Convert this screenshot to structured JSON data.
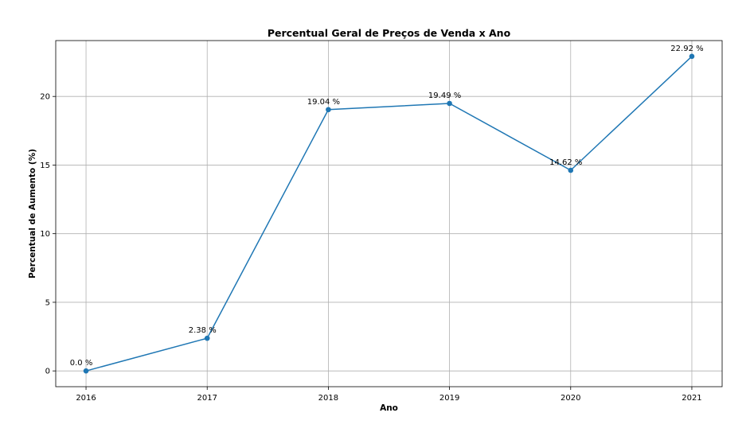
{
  "chart_data": {
    "type": "line",
    "title": "Percentual Geral de Preços de Venda x Ano",
    "xlabel": "Ano",
    "ylabel": "Percentual de Aumento (%)",
    "x": [
      2016,
      2017,
      2018,
      2019,
      2020,
      2021
    ],
    "x_tick_labels": [
      "2016",
      "2017",
      "2018",
      "2019",
      "2020",
      "2021"
    ],
    "y_ticks": [
      0,
      5,
      10,
      15,
      20
    ],
    "y_tick_labels": [
      "0",
      "5",
      "10",
      "15",
      "20"
    ],
    "xlim": [
      2015.75,
      2021.25
    ],
    "ylim": [
      -1.15,
      24.07
    ],
    "grid": true,
    "series": [
      {
        "values": [
          0.0,
          2.38,
          19.04,
          19.49,
          14.62,
          22.92
        ],
        "point_labels": [
          "0.0 %",
          "2.38 %",
          "19.04 %",
          "19.49 %",
          "14.62 %",
          "22.92 %"
        ],
        "color": "#1f77b4",
        "marker": "circle"
      }
    ]
  }
}
